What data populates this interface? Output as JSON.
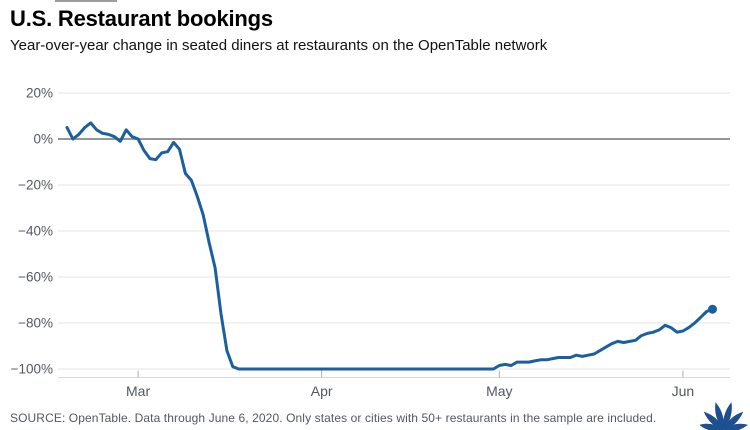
{
  "header": {
    "title": "U.S. Restaurant bookings",
    "subtitle": "Year-over-year change in seated diners at restaurants on the OpenTable network"
  },
  "footer": {
    "source": "SOURCE: OpenTable. Data through June 6, 2020. Only states or cities with 50+ restaurants in the sample are included."
  },
  "branding": {
    "logo": "nbc-peacock-icon",
    "color": "#1d4f91"
  },
  "colors": {
    "line": "#1b5fa0",
    "end_dot": "#1b5fa0",
    "grid": "#e4e4e4",
    "zero_line": "#85878a",
    "axis_line": "#d9d9d9",
    "tick": "#b0b0b0",
    "axis_text": "#53585f",
    "background": "#ffffff"
  },
  "chart_data": {
    "type": "line",
    "title": "U.S. Restaurant bookings",
    "subtitle": "Year-over-year change in seated diners at restaurants on the OpenTable network",
    "unit": "percent",
    "frequency": "daily",
    "start_date": "Feb 18, 2020",
    "end_date": "Jun 6, 2020",
    "ylim": [
      -100,
      20
    ],
    "grid": "horizontal-only",
    "legend": "none",
    "y_ticks": [
      20,
      0,
      -20,
      -40,
      -60,
      -80,
      -100
    ],
    "y_tick_labels": [
      "20%",
      "0%",
      "−20%",
      "−40%",
      "−60%",
      "−80%",
      "−100%"
    ],
    "x_tick_labels": [
      "Mar",
      "Apr",
      "May",
      "Jun"
    ],
    "x_tick_day_index": [
      12,
      43,
      73,
      104
    ],
    "values": [
      5,
      0,
      2,
      5,
      7,
      4,
      2.5,
      2,
      1,
      -1,
      4,
      1,
      0,
      -5,
      -8.5,
      -9,
      -6,
      -5.5,
      -1.5,
      -4.5,
      -15,
      -18,
      -25,
      -33,
      -45,
      -56,
      -76,
      -92,
      -99,
      -100,
      -100,
      -100,
      -100,
      -100,
      -100,
      -100,
      -100,
      -100,
      -100,
      -100,
      -100,
      -100,
      -100,
      -100,
      -100,
      -100,
      -100,
      -100,
      -100,
      -100,
      -100,
      -100,
      -100,
      -100,
      -100,
      -100,
      -100,
      -100,
      -100,
      -100,
      -100,
      -100,
      -100,
      -100,
      -100,
      -100,
      -100,
      -100,
      -100,
      -100,
      -100,
      -100,
      -100,
      -98.5,
      -98,
      -98.5,
      -97,
      -97,
      -97,
      -96.5,
      -96,
      -96,
      -95.5,
      -95,
      -95,
      -95,
      -94,
      -94.5,
      -94,
      -93.5,
      -92,
      -90.5,
      -89,
      -88,
      -88.5,
      -88,
      -87.5,
      -85.5,
      -84.5,
      -84,
      -83,
      -81,
      -82,
      -84,
      -83.5,
      -82,
      -80,
      -77.5,
      -75,
      -74
    ]
  }
}
